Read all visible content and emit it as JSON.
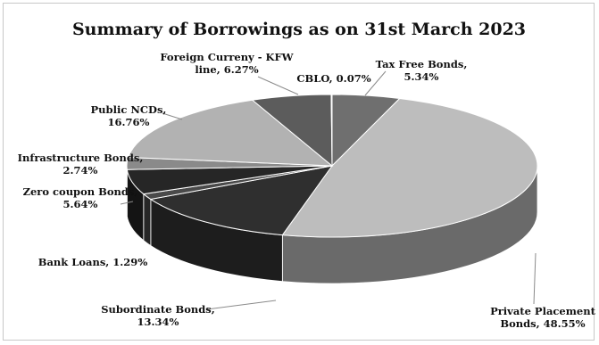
{
  "chart_data": {
    "type": "pie",
    "title": "Summary of Borrowings as on 31st March 2023",
    "legend": "none",
    "slices": [
      {
        "label_lines": [
          "Tax Free Bonds,",
          "5.34%"
        ],
        "name": "Tax Free Bonds",
        "value": 5.34,
        "color": "#6f6f6f",
        "side": "#3e3e3e"
      },
      {
        "label_lines": [
          "Private Placement",
          "Bonds, 48.55%"
        ],
        "name": "Private Placement Bonds",
        "value": 48.55,
        "color": "#bdbdbd",
        "side": "#6a6a6a"
      },
      {
        "label_lines": [
          "Subordinate Bonds,",
          "13.34%"
        ],
        "name": "Subordinate Bonds",
        "value": 13.34,
        "color": "#2f2f2f",
        "side": "#1d1d1d"
      },
      {
        "label_lines": [
          "Bank Loans, 1.29%"
        ],
        "name": "Bank Loans",
        "value": 1.29,
        "color": "#4a4a4a",
        "side": "#272727"
      },
      {
        "label_lines": [
          "Zero coupon Bonds,",
          "5.64%"
        ],
        "name": "Zero coupon Bonds",
        "value": 5.64,
        "color": "#262626",
        "side": "#141414"
      },
      {
        "label_lines": [
          "Infrastructure Bonds,",
          "2.74%"
        ],
        "name": "Infrastructure Bonds",
        "value": 2.74,
        "color": "#8a8a8a",
        "side": "#555555"
      },
      {
        "label_lines": [
          "Public NCDs,",
          "16.76%"
        ],
        "name": "Public NCDs",
        "value": 16.76,
        "color": "#b2b2b2",
        "side": "#707070"
      },
      {
        "label_lines": [
          "Foreign Curreny - KFW",
          "line, 6.27%"
        ],
        "name": "Foreign Curreny - KFW line",
        "value": 6.27,
        "color": "#5c5c5c",
        "side": "#333333"
      },
      {
        "label_lines": [
          "CBLO, 0.07%"
        ],
        "name": "CBLO",
        "value": 0.07,
        "color": "#9a9a9a",
        "side": "#555555"
      }
    ]
  }
}
